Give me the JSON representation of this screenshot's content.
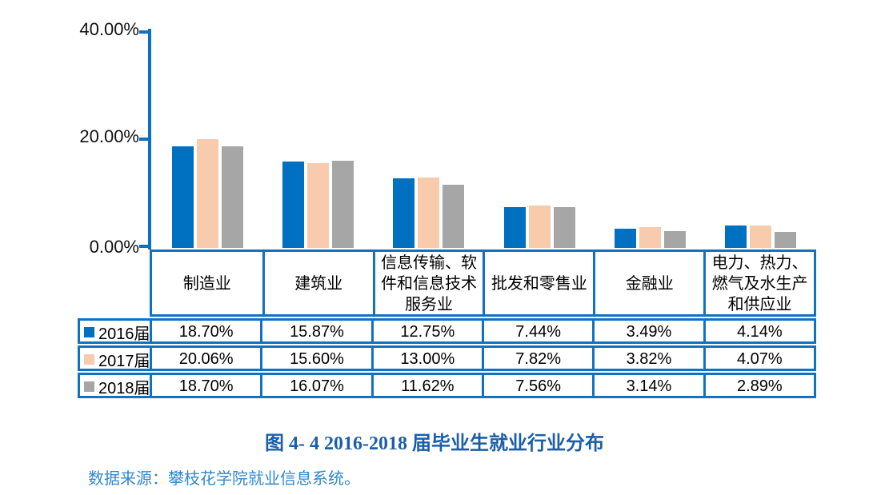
{
  "chart_data": {
    "type": "bar",
    "title": "图 4- 4  2016-2018 届毕业生就业行业分布",
    "categories": [
      "制造业",
      "建筑业",
      "信息传输、软件和信息技术服务业",
      "批发和零售业",
      "金融业",
      "电力、热力、燃气及水生产和供应业"
    ],
    "series": [
      {
        "name": "2016届",
        "color": "#0070C0",
        "values": [
          18.7,
          15.87,
          12.75,
          7.44,
          3.49,
          4.14
        ]
      },
      {
        "name": "2017届",
        "color": "#F7CBAC",
        "values": [
          20.06,
          15.6,
          13.0,
          7.82,
          3.82,
          4.07
        ]
      },
      {
        "name": "2018届",
        "color": "#A6A6A6",
        "values": [
          18.7,
          16.07,
          11.62,
          7.56,
          3.14,
          2.89
        ]
      }
    ],
    "y_axis": {
      "min": 0,
      "max": 40,
      "ticks": [
        "40.00%",
        "20.00%",
        "0.00%"
      ]
    },
    "xlabel": "",
    "ylabel": "",
    "grid": false,
    "legend_position": "table-left-keys"
  },
  "table": {
    "header": [
      "制造业",
      "建筑业",
      "信息传输、软件和信息技术服务业",
      "批发和零售业",
      "金融业",
      "电力、热力、燃气及水生产和供应业"
    ],
    "rows": [
      {
        "label": "2016届",
        "swatch": "#0070C0",
        "cells": [
          "18.70%",
          "15.87%",
          "12.75%",
          "7.44%",
          "3.49%",
          "4.14%"
        ]
      },
      {
        "label": "2017届",
        "swatch": "#F7CBAC",
        "cells": [
          "20.06%",
          "15.60%",
          "13.00%",
          "7.82%",
          "3.82%",
          "4.07%"
        ]
      },
      {
        "label": "2018届",
        "swatch": "#A6A6A6",
        "cells": [
          "18.70%",
          "16.07%",
          "11.62%",
          "7.56%",
          "3.14%",
          "2.89%"
        ]
      }
    ]
  },
  "caption": "图 4- 4  2016-2018 届毕业生就业行业分布",
  "source": "数据来源：攀枝花学院就业信息系统。",
  "colors": {
    "bar_2016": "#0070C0",
    "bar_2017": "#F7CBAC",
    "bar_2018": "#A6A6A6",
    "table_border": "#1272C2",
    "axis": "#0D6FC0",
    "caption_text": "#1B5FA9",
    "source_text": "#3389CB",
    "text": "#000000",
    "background": "#FFFFFF"
  }
}
